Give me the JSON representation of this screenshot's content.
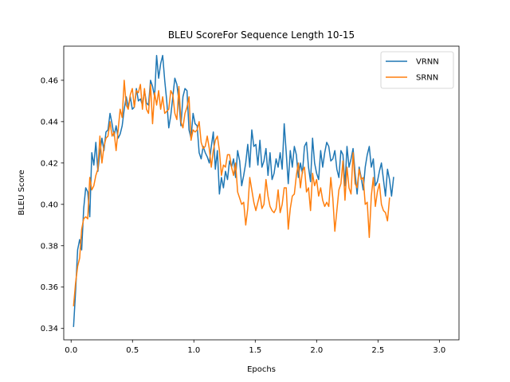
{
  "chart_data": {
    "type": "line",
    "title": "BLEU ScoreFor Sequence Length 10-15",
    "xlabel": "Epochs",
    "ylabel": "BLEU Score",
    "xlim": [
      -0.06,
      3.16
    ],
    "ylim": [
      0.3345,
      0.4765
    ],
    "xticks": [
      0.0,
      0.5,
      1.0,
      1.5,
      2.0,
      2.5,
      3.0
    ],
    "xtick_labels": [
      "0.0",
      "0.5",
      "1.0",
      "1.5",
      "2.0",
      "2.5",
      "3.0"
    ],
    "yticks": [
      0.34,
      0.36,
      0.38,
      0.4,
      0.42,
      0.44,
      0.46
    ],
    "ytick_labels": [
      "0.34",
      "0.36",
      "0.38",
      "0.40",
      "0.42",
      "0.44",
      "0.46"
    ],
    "grid": false,
    "legend_position": "top-right",
    "x_start": 0.02,
    "x_step": 0.0165,
    "series": [
      {
        "name": "VRNN",
        "color": "#1f77b4",
        "values": [
          0.341,
          0.358,
          0.378,
          0.383,
          0.378,
          0.398,
          0.408,
          0.406,
          0.394,
          0.425,
          0.419,
          0.43,
          0.416,
          0.425,
          0.432,
          0.426,
          0.435,
          0.436,
          0.444,
          0.439,
          0.433,
          0.438,
          0.432,
          0.434,
          0.438,
          0.446,
          0.452,
          0.447,
          0.452,
          0.446,
          0.447,
          0.456,
          0.45,
          0.451,
          0.448,
          0.455,
          0.449,
          0.448,
          0.46,
          0.457,
          0.452,
          0.472,
          0.461,
          0.468,
          0.472,
          0.46,
          0.45,
          0.437,
          0.443,
          0.452,
          0.461,
          0.458,
          0.45,
          0.438,
          0.452,
          0.456,
          0.455,
          0.436,
          0.432,
          0.444,
          0.439,
          0.438,
          0.425,
          0.422,
          0.428,
          0.425,
          0.423,
          0.42,
          0.428,
          0.435,
          0.417,
          0.426,
          0.405,
          0.413,
          0.408,
          0.416,
          0.412,
          0.421,
          0.418,
          0.422,
          0.413,
          0.426,
          0.421,
          0.409,
          0.414,
          0.42,
          0.429,
          0.418,
          0.436,
          0.428,
          0.429,
          0.419,
          0.431,
          0.418,
          0.421,
          0.427,
          0.414,
          0.425,
          0.412,
          0.415,
          0.422,
          0.418,
          0.425,
          0.417,
          0.439,
          0.425,
          0.41,
          0.426,
          0.418,
          0.428,
          0.424,
          0.413,
          0.42,
          0.415,
          0.428,
          0.43,
          0.418,
          0.411,
          0.432,
          0.42,
          0.415,
          0.412,
          0.426,
          0.418,
          0.425,
          0.43,
          0.428,
          0.421,
          0.422,
          0.426,
          0.417,
          0.413,
          0.426,
          0.424,
          0.409,
          0.428,
          0.418,
          0.422,
          0.427,
          0.415,
          0.405,
          0.418,
          0.413,
          0.407,
          0.418,
          0.424,
          0.428,
          0.418,
          0.422,
          0.409,
          0.411,
          0.416,
          0.42,
          0.412,
          0.404,
          0.417,
          0.412,
          0.404,
          0.413
        ]
      },
      {
        "name": "SRNN",
        "color": "#ff7f0e",
        "values": [
          0.351,
          0.362,
          0.37,
          0.374,
          0.388,
          0.393,
          0.394,
          0.393,
          0.413,
          0.407,
          0.409,
          0.414,
          0.417,
          0.433,
          0.42,
          0.428,
          0.432,
          0.433,
          0.44,
          0.433,
          0.435,
          0.426,
          0.436,
          0.446,
          0.442,
          0.46,
          0.448,
          0.446,
          0.453,
          0.456,
          0.447,
          0.455,
          0.454,
          0.458,
          0.446,
          0.456,
          0.446,
          0.444,
          0.458,
          0.439,
          0.454,
          0.448,
          0.455,
          0.446,
          0.452,
          0.444,
          0.445,
          0.446,
          0.455,
          0.453,
          0.444,
          0.441,
          0.457,
          0.44,
          0.437,
          0.444,
          0.447,
          0.452,
          0.431,
          0.436,
          0.435,
          0.436,
          0.44,
          0.43,
          0.427,
          0.428,
          0.433,
          0.427,
          0.418,
          0.426,
          0.431,
          0.433,
          0.426,
          0.414,
          0.419,
          0.418,
          0.424,
          0.424,
          0.418,
          0.414,
          0.42,
          0.406,
          0.403,
          0.4,
          0.401,
          0.39,
          0.398,
          0.413,
          0.407,
          0.401,
          0.397,
          0.401,
          0.405,
          0.398,
          0.4,
          0.412,
          0.404,
          0.399,
          0.397,
          0.396,
          0.398,
          0.407,
          0.396,
          0.4,
          0.408,
          0.408,
          0.388,
          0.398,
          0.404,
          0.405,
          0.414,
          0.42,
          0.408,
          0.416,
          0.418,
          0.406,
          0.408,
          0.397,
          0.415,
          0.409,
          0.412,
          0.404,
          0.408,
          0.402,
          0.399,
          0.401,
          0.399,
          0.413,
          0.403,
          0.387,
          0.397,
          0.407,
          0.41,
          0.421,
          0.402,
          0.418,
          0.408,
          0.405,
          0.425,
          0.41,
          0.408,
          0.417,
          0.412,
          0.413,
          0.4,
          0.401,
          0.384,
          0.404,
          0.413,
          0.399,
          0.406,
          0.41,
          0.4,
          0.397,
          0.396,
          0.392,
          0.403
        ]
      }
    ]
  }
}
